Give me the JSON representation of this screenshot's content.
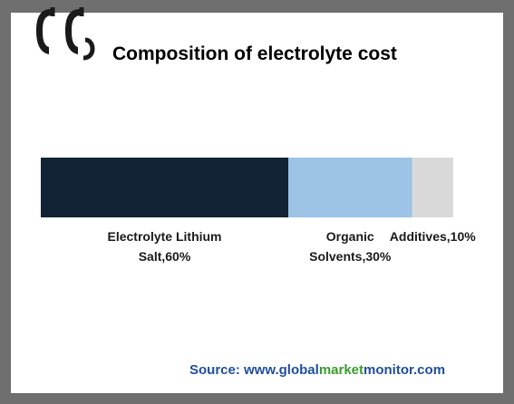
{
  "title": "Composition of electrolyte cost",
  "source": {
    "prefix": "Source: www.",
    "part1": "global",
    "part2": "market",
    "part3": "monitor",
    "suffix": ".com"
  },
  "colors": {
    "source_text": "#1f4e9c",
    "source_green": "#3a9b2e",
    "logo": "#1a1a1a"
  },
  "chart_data": {
    "type": "bar",
    "orientation": "horizontal-stacked",
    "title": "Composition of electrolyte cost",
    "categories": [
      "Electrolyte Lithium Salt",
      "Organic Solvents",
      "Additives"
    ],
    "values": [
      60,
      30,
      10
    ],
    "unit": "%",
    "colors": [
      "#122335",
      "#9dc3e6",
      "#d9d9d9"
    ],
    "labels": [
      [
        "Electrolyte Lithium",
        "Salt,60%"
      ],
      [
        "Organic",
        "Solvents,30%"
      ],
      [
        "Additives,10%"
      ]
    ]
  }
}
